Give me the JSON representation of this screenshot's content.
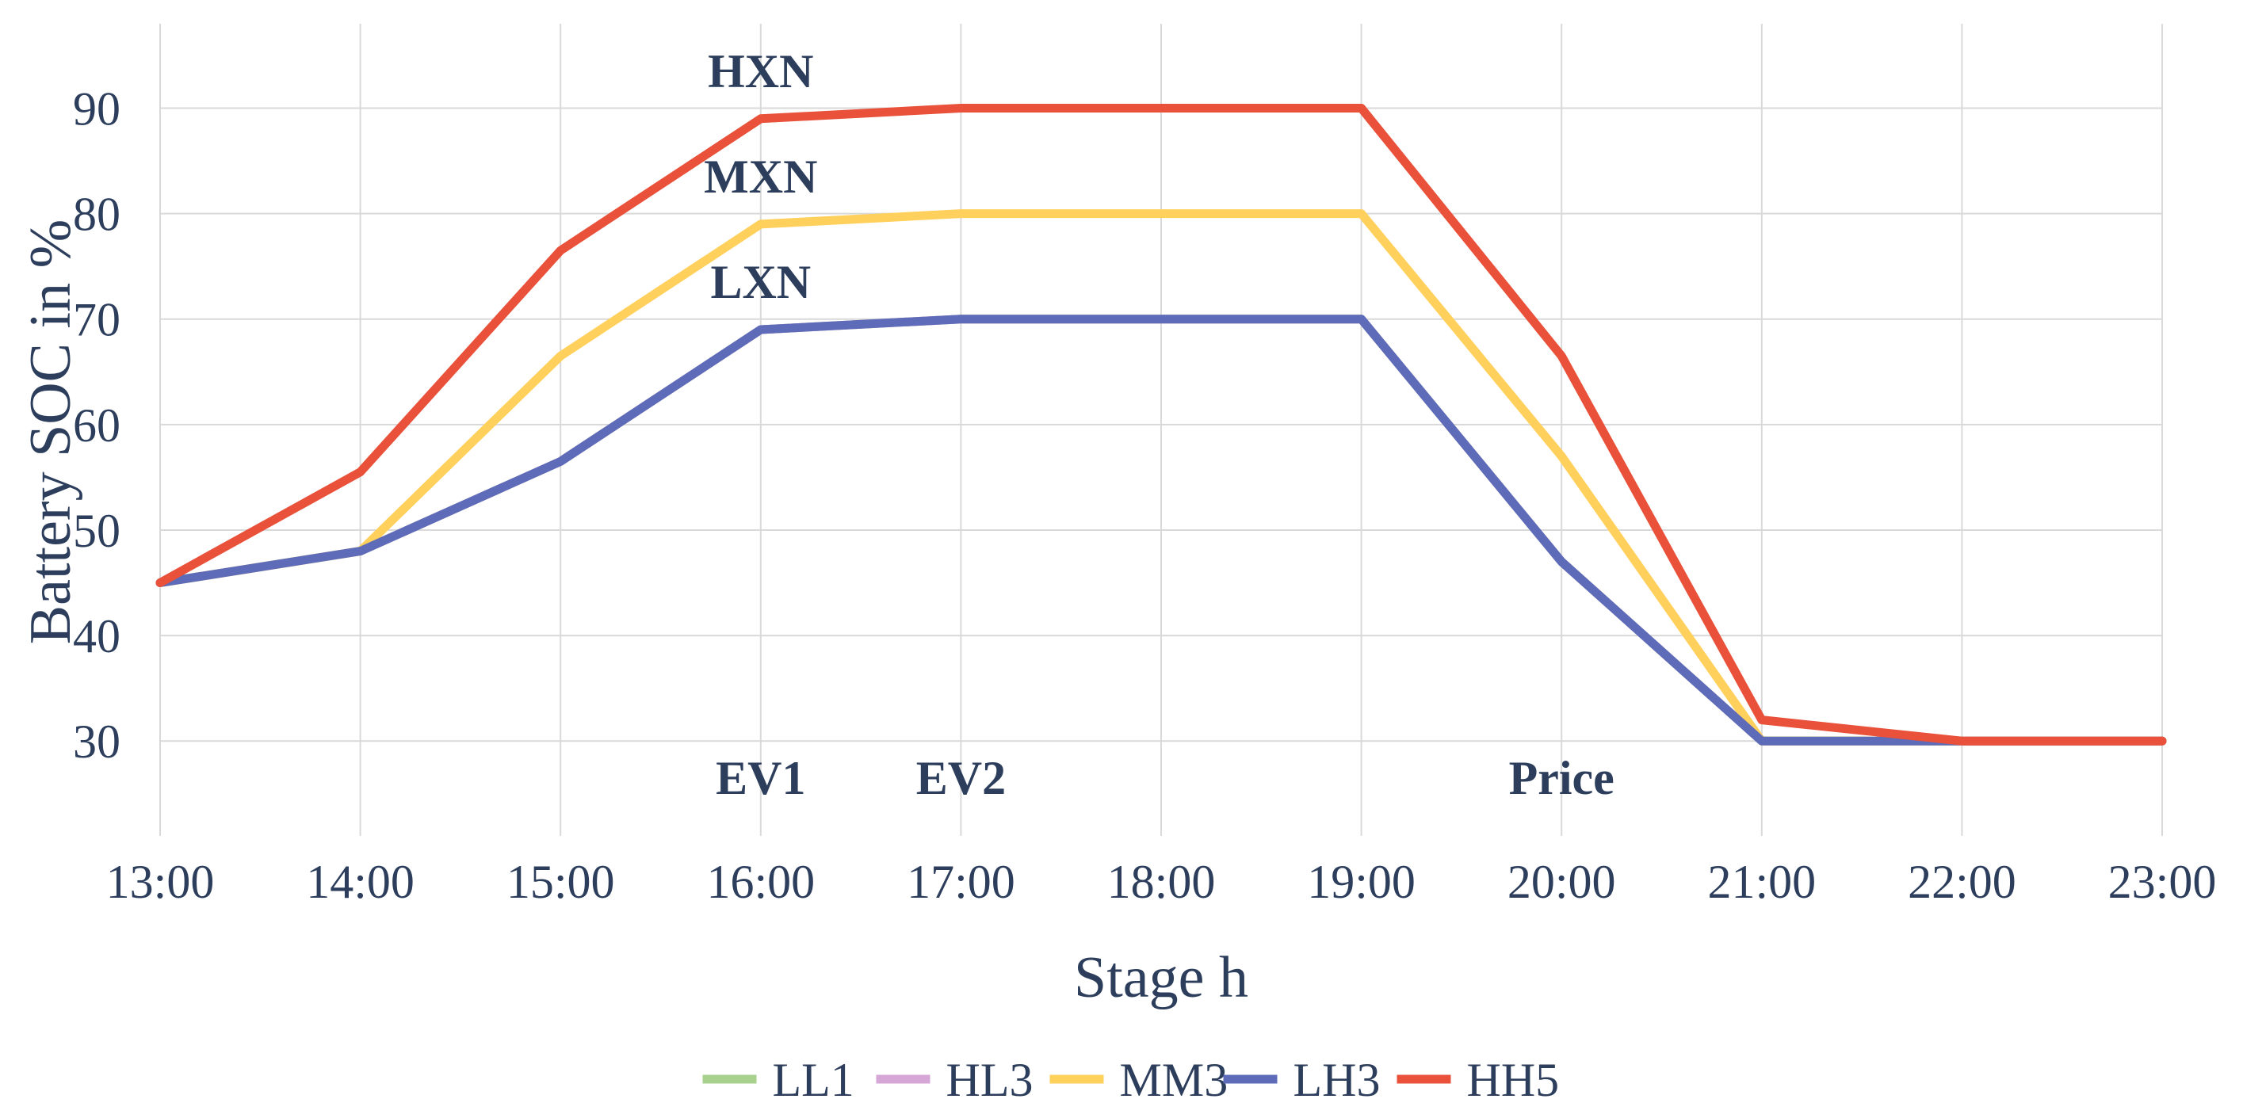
{
  "chart_data": {
    "type": "line",
    "title": "",
    "xlabel": "Stage h",
    "ylabel": "Battery SOC in %",
    "x": [
      "13:00",
      "14:00",
      "15:00",
      "16:00",
      "17:00",
      "18:00",
      "19:00",
      "20:00",
      "21:00",
      "22:00",
      "23:00"
    ],
    "ylim": [
      21,
      98
    ],
    "yticks": [
      30,
      40,
      50,
      60,
      70,
      80,
      90
    ],
    "grid": true,
    "legend_position": "bottom",
    "series": [
      {
        "name": "LL1",
        "color": "#a9d18e",
        "values": [
          45,
          48,
          56.5,
          69,
          70,
          70,
          70,
          47,
          30,
          30,
          30
        ]
      },
      {
        "name": "HL3",
        "color": "#d5a6d6",
        "values": [
          45,
          48,
          56.5,
          69,
          70,
          70,
          70,
          47,
          30,
          30,
          30
        ]
      },
      {
        "name": "MM3",
        "color": "#ffd05b",
        "values": [
          45,
          48,
          66.5,
          79,
          80,
          80,
          80,
          57,
          30,
          30,
          30
        ]
      },
      {
        "name": "LH3",
        "color": "#5e6bb8",
        "values": [
          45,
          48,
          56.5,
          69,
          70,
          70,
          70,
          47,
          30,
          30,
          30
        ]
      },
      {
        "name": "HH5",
        "color": "#e9513a",
        "values": [
          45,
          55.5,
          76.5,
          89,
          90,
          90,
          90,
          66.5,
          32,
          30,
          30
        ]
      }
    ],
    "annotations": [
      {
        "text": "HXN",
        "x": "16:00",
        "y": 92
      },
      {
        "text": "MXN",
        "x": "16:00",
        "y": 82
      },
      {
        "text": "LXN",
        "x": "16:00",
        "y": 72
      },
      {
        "text": "EV1",
        "x": "16:00",
        "y": 25
      },
      {
        "text": "EV2",
        "x": "17:00",
        "y": 25
      },
      {
        "text": "Price",
        "x": "20:00",
        "y": 25
      }
    ]
  }
}
